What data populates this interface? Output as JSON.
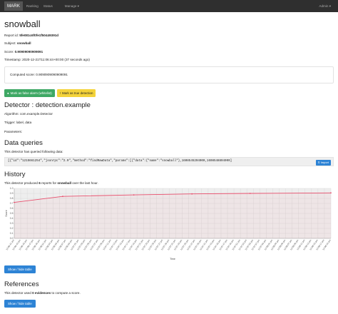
{
  "nav": {
    "brand": "MARK",
    "links": [
      "Ranking",
      "Status"
    ],
    "manage": "Manage",
    "admin": "Admin"
  },
  "report": {
    "title": "snowball",
    "id_label": "Report id:",
    "id": "5fe081c6f0fe1f50449391d",
    "subject_label": "Subject:",
    "subject": "snowball",
    "score_label": "Score:",
    "score": "0.90909090909091",
    "timestamp_label": "Timestamp:",
    "timestamp": "2020-12-21T11:06:44+00:00 (37 seconds ago)",
    "computed_score": "Computed score: 0.9090909090909091"
  },
  "buttons": {
    "false_alarm": "Mark as false alarm (whitelist)",
    "true_detection": "Mark as true detection",
    "show_hide_1": "Show / hide table",
    "show_hide_2": "Show / hide table",
    "import": "Import"
  },
  "detector": {
    "heading": "Detector : detection.example",
    "algorithm": "Algorithm: com.example.Detector",
    "trigger": "Trigger: label, data",
    "parameters": "Parameters:"
  },
  "data_queries": {
    "heading": "Data queries",
    "intro": "This detector has queried following data:",
    "query": "[{\"id\":\"1215661254\",\"jsonrpc\":\"2.0\",\"method\":\"findRawData\",\"params\":[{\"data\":{\"name\":\"snowball\"},1608545204000,1608548804000]"
  },
  "history": {
    "heading": "History",
    "intro_prefix": "This detector produced",
    "count": "6",
    "intro_middle": "reports for",
    "subject": "snowball",
    "intro_suffix": "over the last hour."
  },
  "references": {
    "heading": "References",
    "intro_prefix": "This detector used",
    "count": "0 evidences",
    "intro_suffix": "to compute a score."
  },
  "chart_data": {
    "type": "line",
    "xlabel": "Time",
    "ylabel": "Score",
    "ylim": [
      0,
      1
    ],
    "yticks": [
      "0.0",
      "0.1",
      "0.2",
      "0.3",
      "0.4",
      "0.5",
      "0.6",
      "0.7",
      "0.8",
      "0.9",
      "1.0"
    ],
    "x_tick_labels": [
      "12:06:41 pm",
      "12:06:43 pm",
      "12:06:45 pm",
      "12:06:47 pm",
      "12:06:49 pm",
      "12:06:51 pm",
      "12:06:53 pm",
      "12:06:55 pm",
      "12:06:57 pm",
      "12:06:59 pm",
      "12:07:01 pm",
      "12:07:03 pm",
      "12:07:05 pm",
      "12:07:07 pm",
      "12:07:09 pm",
      "12:07:11 pm",
      "12:07:13 pm",
      "12:07:15 pm",
      "12:07:17 pm",
      "12:07:19 pm",
      "12:07:21 pm",
      "12:07:23 pm",
      "12:07:25 pm",
      "12:07:27 pm",
      "12:07:29 pm",
      "12:07:31 pm",
      "12:07:33 pm",
      "12:07:35 pm",
      "12:07:37 pm",
      "12:07:39 pm",
      "12:07:41 pm",
      "12:07:43 pm",
      "12:07:45 pm",
      "12:07:47 pm",
      "12:07:49 pm",
      "12:07:51 pm",
      "12:07:53 pm",
      "12:07:55 pm",
      "12:07:57 pm",
      "12:07:59 pm",
      "12:08:01 pm",
      "12:08:03 pm",
      "12:08:05 pm",
      "12:08:07 pm",
      "12:08:09 pm",
      "12:08:11 pm",
      "12:08:13 pm",
      "12:08:15 pm",
      "12:08:17 pm",
      "12:08:19 pm"
    ],
    "series": [
      {
        "color": "#e8506e",
        "points": [
          {
            "x_index": 0,
            "y": 0.72
          },
          {
            "x_index": 7.5,
            "y": 0.84
          },
          {
            "x_index": 18.5,
            "y": 0.87
          },
          {
            "x_index": 27.5,
            "y": 0.89
          },
          {
            "x_index": 36.5,
            "y": 0.9
          },
          {
            "x_index": 49,
            "y": 0.91
          }
        ]
      }
    ],
    "grid": true
  }
}
